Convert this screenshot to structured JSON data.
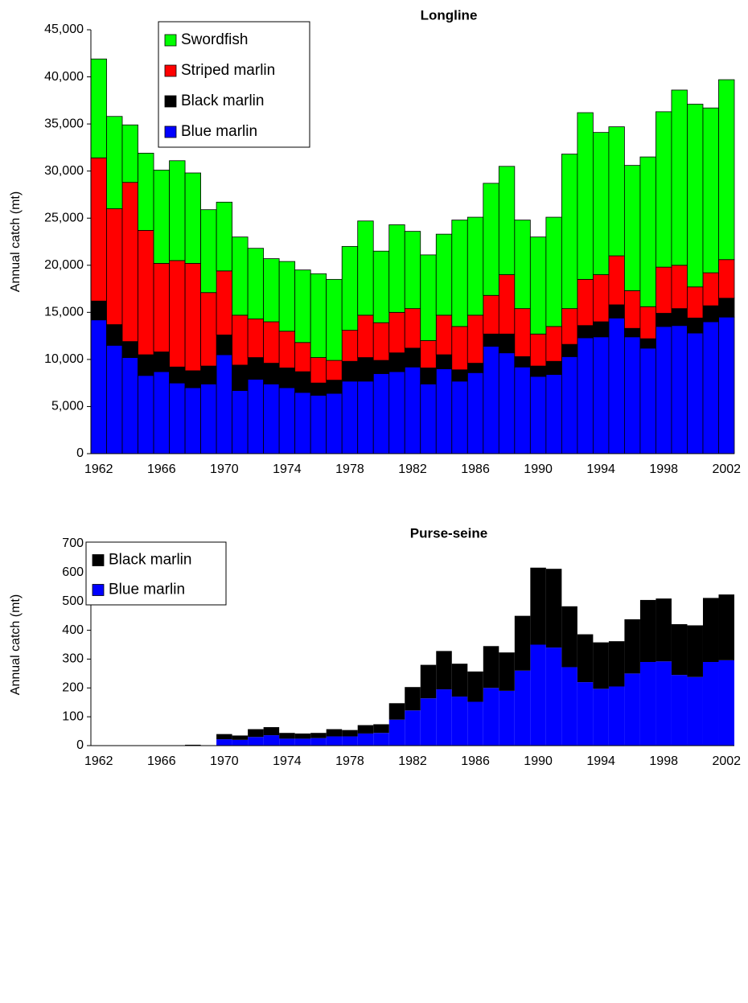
{
  "chart_data": [
    {
      "type": "stacked_bar",
      "title": "Longline",
      "ylabel": "Annual catch (mt)",
      "categories": [
        "1962",
        null,
        null,
        null,
        "1966",
        null,
        null,
        null,
        "1970",
        null,
        null,
        null,
        "1974",
        null,
        null,
        null,
        "1978",
        null,
        null,
        null,
        "1982",
        null,
        null,
        null,
        "1986",
        null,
        null,
        null,
        "1990",
        null,
        null,
        null,
        "1994",
        null,
        null,
        null,
        "1998",
        null,
        null,
        null,
        "2002"
      ],
      "series": [
        {
          "name": "Blue marlin",
          "color": "#0000ff",
          "values": [
            14200,
            11500,
            10200,
            8300,
            8700,
            7500,
            7000,
            7400,
            10500,
            6700,
            7900,
            7400,
            7000,
            6500,
            6200,
            6400,
            7700,
            7700,
            8500,
            8700,
            9200,
            7400,
            9000,
            7700,
            8600,
            11400,
            10700,
            9200,
            8200,
            8400,
            10300,
            12300,
            12400,
            14400,
            12400,
            11200,
            13500,
            13600,
            12800,
            14000,
            14500
          ]
        },
        {
          "name": "Black marlin",
          "color": "#000000",
          "values": [
            2000,
            2200,
            1700,
            2200,
            2100,
            1700,
            1800,
            1900,
            2100,
            2700,
            2300,
            2200,
            2100,
            2200,
            1300,
            1400,
            2100,
            2500,
            1400,
            2000,
            2000,
            1700,
            1500,
            1200,
            1000,
            1300,
            2000,
            1100,
            1100,
            1400,
            1300,
            1300,
            1600,
            1400,
            900,
            1000,
            1400,
            1800,
            1600,
            1700,
            2000
          ]
        },
        {
          "name": "Striped marlin",
          "color": "#ff0000",
          "values": [
            15200,
            12300,
            16900,
            13200,
            9400,
            11300,
            11400,
            7800,
            6800,
            5300,
            4100,
            4400,
            3900,
            3100,
            2700,
            2100,
            3300,
            4500,
            4000,
            4300,
            4200,
            2900,
            4200,
            4600,
            5100,
            4100,
            6300,
            5100,
            3400,
            3700,
            3800,
            4900,
            5000,
            5200,
            4000,
            3400,
            4900,
            4600,
            3300,
            3500,
            4100
          ]
        },
        {
          "name": "Swordfish",
          "color": "#00ff00",
          "values": [
            10500,
            9800,
            6100,
            8200,
            9900,
            10600,
            9600,
            8800,
            7300,
            8300,
            7500,
            6700,
            7400,
            7700,
            8900,
            8600,
            8900,
            10000,
            7600,
            9300,
            8200,
            9100,
            8600,
            11300,
            10400,
            11900,
            11500,
            9400,
            10300,
            11600,
            16400,
            17700,
            15100,
            13700,
            13300,
            15900,
            16500,
            18600,
            19400,
            17500,
            19100
          ]
        }
      ],
      "ylim": [
        0,
        45000
      ],
      "yticks": [
        0,
        {
          "value": 5000,
          "label": "5,000"
        },
        {
          "value": 10000,
          "label": "10,000"
        },
        {
          "value": 15000,
          "label": "15,000"
        },
        {
          "value": 20000,
          "label": "20,000"
        },
        {
          "value": 25000,
          "label": "25,000"
        },
        {
          "value": 30000,
          "label": "30,000"
        },
        {
          "value": 35000,
          "label": "35,000"
        },
        {
          "value": 40000,
          "label": "40,000"
        },
        {
          "value": 45000,
          "label": "45,000"
        }
      ],
      "edgecolor": "#000000"
    },
    {
      "type": "stacked_bar",
      "title": "Purse-seine",
      "ylabel": "Annual catch (mt)",
      "categories": [
        "1962",
        null,
        null,
        null,
        "1966",
        null,
        null,
        null,
        "1970",
        null,
        null,
        null,
        "1974",
        null,
        null,
        null,
        "1978",
        null,
        null,
        null,
        "1982",
        null,
        null,
        null,
        "1986",
        null,
        null,
        null,
        "1990",
        null,
        null,
        null,
        "1994",
        null,
        null,
        null,
        "1998",
        null,
        null,
        null,
        "2002"
      ],
      "series": [
        {
          "name": "Blue marlin",
          "color": "#0000ff",
          "values": [
            0,
            0,
            0,
            0,
            0,
            0,
            0,
            0,
            22,
            20,
            30,
            36,
            24,
            24,
            26,
            32,
            32,
            42,
            44,
            90,
            122,
            164,
            195,
            170,
            152,
            200,
            190,
            260,
            350,
            340,
            272,
            220,
            197,
            205,
            250,
            290,
            292,
            245,
            238,
            290,
            296
          ]
        },
        {
          "name": "Black marlin",
          "color": "#000000",
          "values": [
            0,
            0,
            0,
            0,
            0,
            0,
            3,
            0,
            18,
            15,
            27,
            28,
            20,
            18,
            18,
            25,
            22,
            29,
            30,
            57,
            81,
            116,
            133,
            114,
            105,
            145,
            133,
            190,
            267,
            273,
            211,
            166,
            161,
            157,
            188,
            215,
            218,
            176,
            179,
            222,
            228
          ]
        }
      ],
      "ylim": [
        0,
        700
      ],
      "yticks": [
        0,
        100,
        200,
        300,
        400,
        500,
        600,
        700
      ]
    }
  ]
}
